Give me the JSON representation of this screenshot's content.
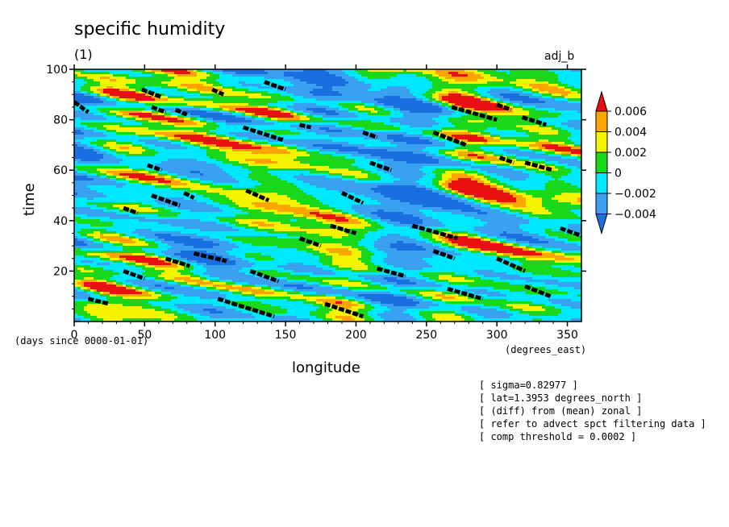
{
  "chart_data": {
    "type": "heatmap",
    "title": "specific humidity",
    "subtitle": "(1)",
    "panel_label": "adj_b",
    "xlabel": "longitude",
    "ylabel": "time",
    "x_unit_note": "(degrees_east)",
    "y_unit_note": "(days since 0000-01-01)",
    "xlim": [
      0,
      360
    ],
    "ylim": [
      0,
      100
    ],
    "x_ticks": [
      0,
      50,
      100,
      150,
      200,
      250,
      300,
      350
    ],
    "y_ticks": [
      20,
      40,
      60,
      80,
      100
    ],
    "colorbar": {
      "levels": [
        -0.006,
        -0.004,
        -0.002,
        0,
        0.002,
        0.004,
        0.006
      ],
      "labels": [
        "0.006",
        "0.004",
        "0.002",
        "0",
        "−0.002",
        "−0.004"
      ],
      "colors": [
        "#1a6fe0",
        "#3aa0f0",
        "#00e8ff",
        "#19d819",
        "#f4f400",
        "#ffa500",
        "#e81010"
      ]
    },
    "pattern": "eastward-propagating streaks (westward phase tilt), positive anomalies highlighted in black above comp threshold",
    "highlight_segments": [
      {
        "x": [
          0,
          10
        ],
        "y": [
          87,
          83
        ]
      },
      {
        "x": [
          48,
          62
        ],
        "y": [
          92,
          89
        ]
      },
      {
        "x": [
          55,
          65
        ],
        "y": [
          85,
          83
        ]
      },
      {
        "x": [
          72,
          80
        ],
        "y": [
          84,
          82
        ]
      },
      {
        "x": [
          98,
          106
        ],
        "y": [
          92,
          90
        ]
      },
      {
        "x": [
          135,
          150
        ],
        "y": [
          95,
          92
        ]
      },
      {
        "x": [
          120,
          148
        ],
        "y": [
          77,
          72
        ]
      },
      {
        "x": [
          160,
          168
        ],
        "y": [
          78,
          77
        ]
      },
      {
        "x": [
          52,
          62
        ],
        "y": [
          62,
          60
        ]
      },
      {
        "x": [
          55,
          75
        ],
        "y": [
          50,
          46
        ]
      },
      {
        "x": [
          78,
          85
        ],
        "y": [
          51,
          49
        ]
      },
      {
        "x": [
          122,
          138
        ],
        "y": [
          52,
          48
        ]
      },
      {
        "x": [
          190,
          205
        ],
        "y": [
          51,
          47
        ]
      },
      {
        "x": [
          210,
          225
        ],
        "y": [
          63,
          60
        ]
      },
      {
        "x": [
          182,
          200
        ],
        "y": [
          38,
          35
        ]
      },
      {
        "x": [
          240,
          272
        ],
        "y": [
          38,
          33
        ]
      },
      {
        "x": [
          215,
          235
        ],
        "y": [
          21,
          18
        ]
      },
      {
        "x": [
          268,
          300
        ],
        "y": [
          85,
          80
        ]
      },
      {
        "x": [
          300,
          310
        ],
        "y": [
          86,
          84
        ]
      },
      {
        "x": [
          318,
          335
        ],
        "y": [
          81,
          78
        ]
      },
      {
        "x": [
          302,
          312
        ],
        "y": [
          65,
          63
        ]
      },
      {
        "x": [
          320,
          340
        ],
        "y": [
          63,
          60
        ]
      },
      {
        "x": [
          255,
          278
        ],
        "y": [
          75,
          70
        ]
      },
      {
        "x": [
          345,
          360
        ],
        "y": [
          37,
          34
        ]
      },
      {
        "x": [
          320,
          338
        ],
        "y": [
          14,
          10
        ]
      },
      {
        "x": [
          265,
          290
        ],
        "y": [
          13,
          9
        ]
      },
      {
        "x": [
          85,
          108
        ],
        "y": [
          27,
          24
        ]
      },
      {
        "x": [
          65,
          82
        ],
        "y": [
          25,
          22
        ]
      },
      {
        "x": [
          160,
          175
        ],
        "y": [
          33,
          30
        ]
      },
      {
        "x": [
          102,
          142
        ],
        "y": [
          9,
          2
        ]
      },
      {
        "x": [
          178,
          205
        ],
        "y": [
          7,
          2
        ]
      },
      {
        "x": [
          35,
          50
        ],
        "y": [
          20,
          17
        ]
      },
      {
        "x": [
          125,
          145
        ],
        "y": [
          20,
          16
        ]
      },
      {
        "x": [
          10,
          25
        ],
        "y": [
          9,
          7
        ]
      },
      {
        "x": [
          255,
          270
        ],
        "y": [
          28,
          25
        ]
      },
      {
        "x": [
          35,
          45
        ],
        "y": [
          45,
          43
        ]
      },
      {
        "x": [
          205,
          215
        ],
        "y": [
          75,
          73
        ]
      },
      {
        "x": [
          300,
          320
        ],
        "y": [
          25,
          20
        ]
      }
    ]
  }
}
